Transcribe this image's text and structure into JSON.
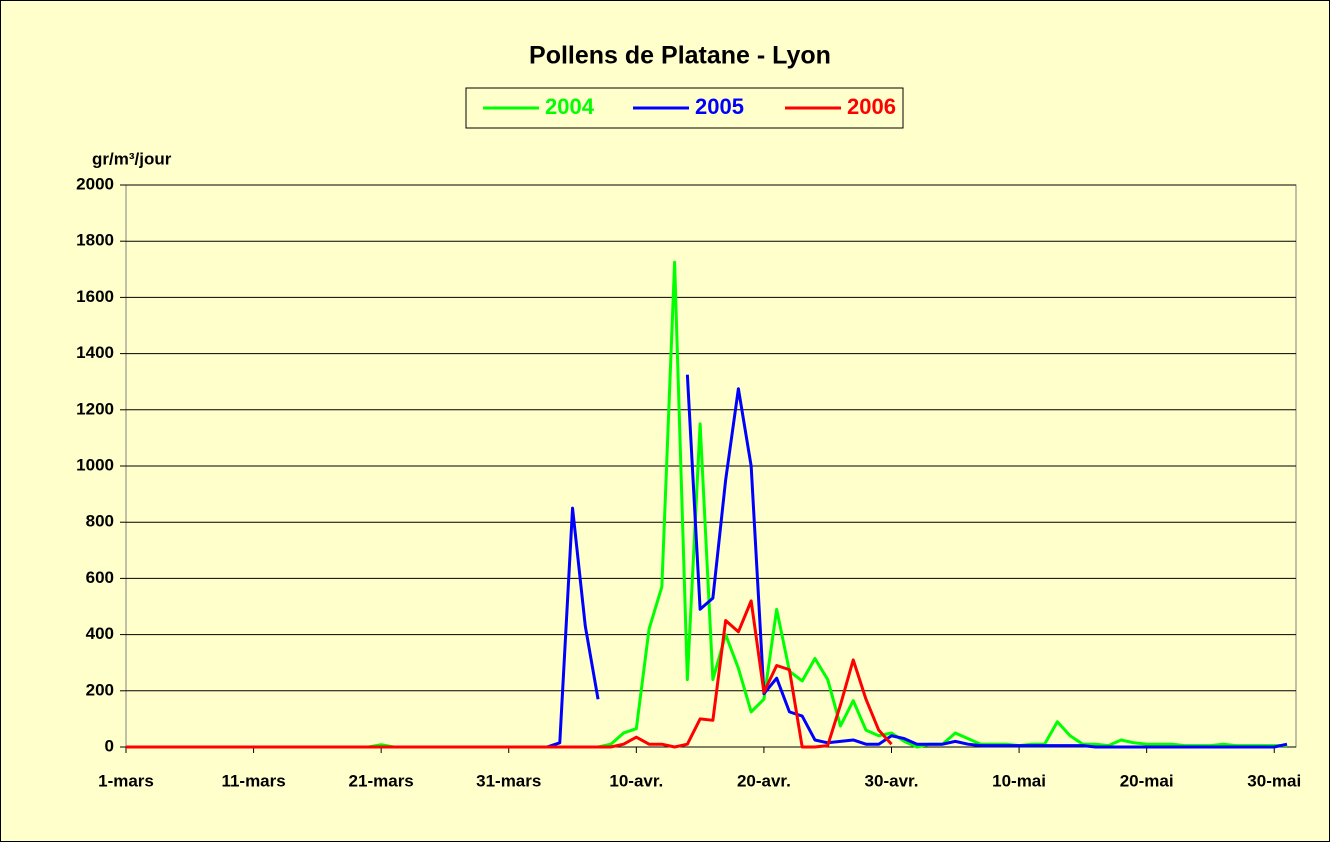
{
  "chart_data": {
    "type": "line",
    "title": "Pollens de Platane - Lyon",
    "y_label": "gr/m³/jour",
    "categories": [
      "1-mars",
      null,
      null,
      null,
      null,
      null,
      null,
      null,
      null,
      null,
      "11-mars",
      null,
      null,
      null,
      null,
      null,
      null,
      null,
      null,
      null,
      "21-mars",
      null,
      null,
      null,
      null,
      null,
      null,
      null,
      null,
      null,
      "31-mars",
      null,
      null,
      null,
      null,
      null,
      null,
      null,
      null,
      null,
      "10-avr.",
      null,
      null,
      null,
      null,
      null,
      null,
      null,
      null,
      null,
      "20-avr.",
      null,
      null,
      null,
      null,
      null,
      null,
      null,
      null,
      null,
      "30-avr.",
      null,
      null,
      null,
      null,
      null,
      null,
      null,
      null,
      null,
      "10-mai",
      null,
      null,
      null,
      null,
      null,
      null,
      null,
      null,
      null,
      "20-mai",
      null,
      null,
      null,
      null,
      null,
      null,
      null,
      null,
      null,
      "30-mai",
      null
    ],
    "series": [
      {
        "name": "2004",
        "color": "#00ff00",
        "values": [
          0,
          0,
          0,
          0,
          0,
          0,
          0,
          0,
          0,
          0,
          0,
          0,
          0,
          0,
          0,
          0,
          0,
          0,
          0,
          0,
          8,
          0,
          0,
          0,
          0,
          0,
          0,
          0,
          0,
          0,
          0,
          0,
          0,
          0,
          0,
          0,
          0,
          0,
          10,
          50,
          65,
          420,
          570,
          1725,
          240,
          1150,
          240,
          400,
          280,
          125,
          170,
          490,
          270,
          235,
          315,
          240,
          75,
          165,
          60,
          40,
          50,
          20,
          0,
          10,
          10,
          50,
          30,
          10,
          10,
          10,
          5,
          10,
          10,
          90,
          40,
          10,
          10,
          5,
          25,
          15,
          10,
          10,
          10,
          5,
          5,
          5,
          10,
          5,
          5,
          5,
          5,
          5
        ]
      },
      {
        "name": "2005",
        "color": "#0000ff",
        "values": [
          0,
          0,
          0,
          0,
          0,
          0,
          0,
          0,
          0,
          0,
          0,
          0,
          0,
          0,
          0,
          0,
          0,
          0,
          0,
          0,
          0,
          0,
          0,
          0,
          0,
          0,
          0,
          0,
          0,
          0,
          0,
          0,
          0,
          0,
          15,
          850,
          430,
          170,
          null,
          null,
          null,
          null,
          null,
          null,
          1325,
          490,
          530,
          950,
          1275,
          1000,
          190,
          245,
          125,
          110,
          25,
          15,
          20,
          25,
          10,
          10,
          40,
          30,
          10,
          10,
          10,
          20,
          10,
          5,
          5,
          5,
          5,
          5,
          5,
          5,
          5,
          5,
          0,
          0,
          0,
          0,
          0,
          0,
          0,
          0,
          0,
          0,
          0,
          0,
          0,
          0,
          0,
          10
        ]
      },
      {
        "name": "2006",
        "color": "#ff0000",
        "values": [
          0,
          0,
          0,
          0,
          0,
          0,
          0,
          0,
          0,
          0,
          0,
          0,
          0,
          0,
          0,
          0,
          0,
          0,
          0,
          0,
          0,
          0,
          0,
          0,
          0,
          0,
          0,
          0,
          0,
          0,
          0,
          0,
          0,
          0,
          0,
          0,
          0,
          0,
          0,
          10,
          35,
          10,
          10,
          0,
          10,
          100,
          95,
          450,
          410,
          520,
          195,
          290,
          275,
          0,
          0,
          5,
          150,
          310,
          170,
          60,
          10,
          null,
          null,
          null,
          null,
          null,
          null,
          null,
          null,
          null,
          null,
          null,
          null,
          null,
          null,
          null,
          null,
          null,
          null,
          null,
          null,
          null,
          null,
          null,
          null,
          null,
          null,
          null,
          null,
          null,
          null,
          null
        ]
      }
    ],
    "ylim": [
      0,
      2000
    ],
    "yticks": [
      0,
      200,
      400,
      600,
      800,
      1000,
      1200,
      1400,
      1600,
      1800,
      2000
    ],
    "grid": true
  }
}
